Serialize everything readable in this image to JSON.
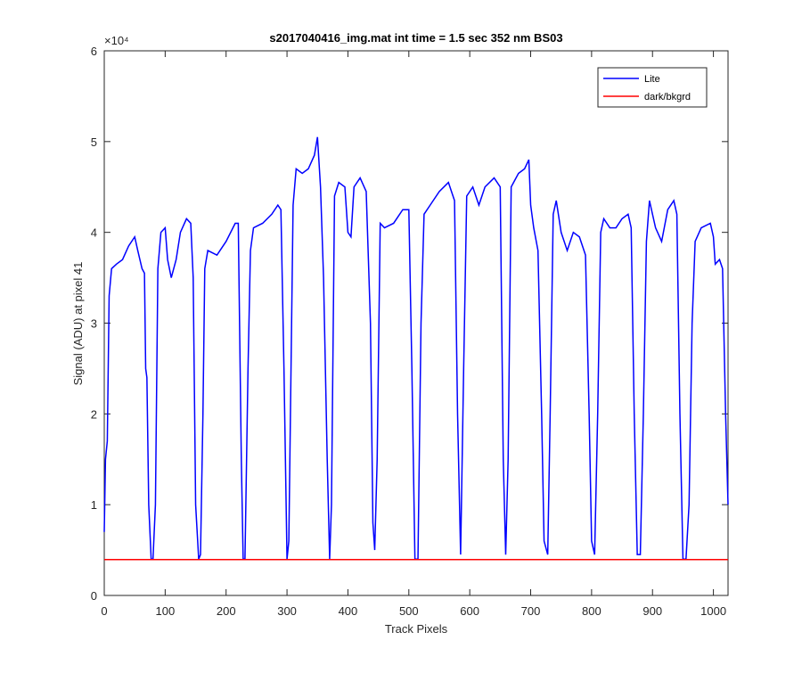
{
  "chart_data": {
    "type": "line",
    "title": "s2017040416_img.mat int time = 1.5 sec  352 nm BS03",
    "xlabel": "Track Pixels",
    "ylabel": "Signal (ADU) at pixel 41",
    "y_scale_label": "×10⁴",
    "xlim": [
      0,
      1024
    ],
    "ylim": [
      0,
      60000
    ],
    "xticks": [
      0,
      100,
      200,
      300,
      400,
      500,
      600,
      700,
      800,
      900,
      1000
    ],
    "yticks": [
      {
        "value": 0,
        "label": "0"
      },
      {
        "value": 10000,
        "label": "1"
      },
      {
        "value": 20000,
        "label": "2"
      },
      {
        "value": 30000,
        "label": "3"
      },
      {
        "value": 40000,
        "label": "4"
      },
      {
        "value": 50000,
        "label": "5"
      },
      {
        "value": 60000,
        "label": "6"
      }
    ],
    "legend": "upper right",
    "series": [
      {
        "name": "Lite",
        "color": "#0000ff",
        "x": [
          0,
          2,
          5,
          8,
          12,
          20,
          30,
          40,
          50,
          55,
          62,
          66,
          68,
          70,
          73,
          77,
          80,
          84,
          88,
          93,
          100,
          104,
          110,
          118,
          125,
          135,
          142,
          146,
          150,
          155,
          158,
          162,
          165,
          170,
          185,
          200,
          215,
          220,
          225,
          228,
          231,
          236,
          240,
          245,
          260,
          275,
          285,
          290,
          295,
          300,
          303,
          310,
          315,
          325,
          335,
          345,
          350,
          355,
          360,
          366,
          370,
          373,
          378,
          385,
          395,
          400,
          405,
          410,
          420,
          430,
          437,
          441,
          444,
          448,
          453,
          460,
          475,
          490,
          500,
          505,
          510,
          515,
          520,
          525,
          535,
          550,
          565,
          575,
          580,
          585,
          590,
          595,
          605,
          615,
          625,
          640,
          650,
          655,
          659,
          663,
          668,
          680,
          690,
          697,
          700,
          705,
          712,
          718,
          722,
          728,
          732,
          737,
          742,
          750,
          760,
          770,
          780,
          790,
          796,
          800,
          805,
          810,
          815,
          820,
          830,
          840,
          850,
          860,
          865,
          870,
          875,
          880,
          885,
          890,
          895,
          905,
          915,
          925,
          935,
          940,
          945,
          950,
          955,
          960,
          965,
          970,
          980,
          995,
          1000,
          1003,
          1010,
          1015,
          1020,
          1024
        ],
        "values": [
          7000,
          15000,
          17000,
          33000,
          36000,
          36500,
          37000,
          38500,
          39500,
          38000,
          36000,
          35500,
          25000,
          24000,
          10000,
          4000,
          4000,
          10000,
          36000,
          40000,
          40500,
          37000,
          35000,
          37000,
          40000,
          41500,
          41000,
          35000,
          10000,
          4000,
          4500,
          20000,
          36000,
          38000,
          37500,
          39000,
          41000,
          41000,
          15000,
          4000,
          4000,
          25000,
          38000,
          40500,
          41000,
          42000,
          43000,
          42500,
          25000,
          4000,
          6000,
          43000,
          47000,
          46500,
          47000,
          48500,
          50500,
          45000,
          35000,
          15000,
          4000,
          10000,
          44000,
          45500,
          45000,
          40000,
          39500,
          45000,
          46000,
          44500,
          30000,
          8000,
          5000,
          15000,
          41000,
          40500,
          41000,
          42500,
          42500,
          25000,
          4000,
          4000,
          30000,
          42000,
          43000,
          44500,
          45500,
          43500,
          20000,
          4500,
          25000,
          44000,
          45000,
          43000,
          45000,
          46000,
          45000,
          15000,
          4500,
          15000,
          45000,
          46500,
          47000,
          48000,
          43000,
          40500,
          38000,
          20000,
          6000,
          4500,
          20000,
          42000,
          43500,
          40000,
          38000,
          40000,
          39500,
          37500,
          20000,
          6000,
          4500,
          20000,
          40000,
          41500,
          40500,
          40500,
          41500,
          42000,
          40500,
          20000,
          4500,
          4500,
          20000,
          39000,
          43500,
          40500,
          39000,
          42500,
          43500,
          42000,
          20000,
          4000,
          4000,
          10000,
          30000,
          39000,
          40500,
          41000,
          39500,
          36500,
          37000,
          36000,
          20000,
          10000
        ]
      },
      {
        "name": "dark/bkgrd",
        "color": "#ff0000",
        "x": [
          0,
          1024
        ],
        "values": [
          3950,
          3950
        ]
      }
    ]
  }
}
